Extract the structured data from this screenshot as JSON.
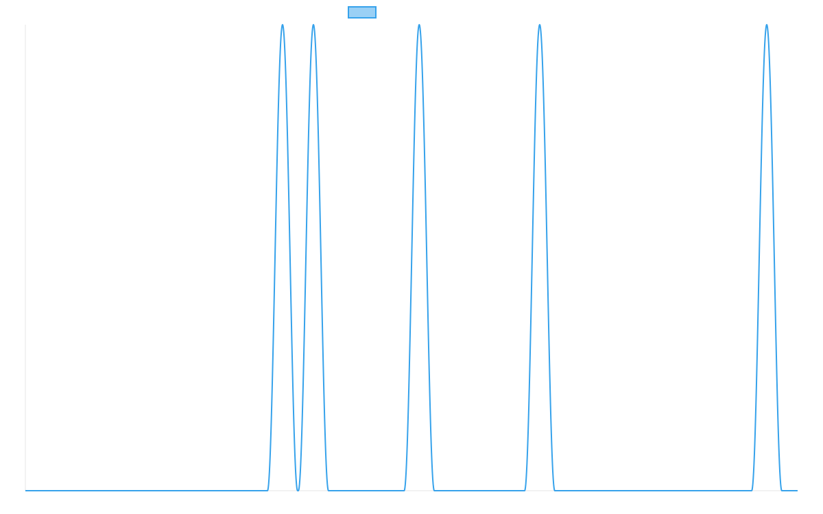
{
  "chart_data": {
    "type": "line",
    "title": "",
    "xlabel": "",
    "ylabel": "",
    "xlim": [
      0,
      100
    ],
    "ylim": [
      0,
      1
    ],
    "grid": false,
    "legend": {
      "placement": "top-center",
      "entries": [
        {
          "label": "",
          "color": "#36A2EB",
          "fill": "#9AD0F5"
        }
      ]
    },
    "series": [
      {
        "color": "#36A2EB",
        "peaks": [
          {
            "x": 33.3,
            "y": 1,
            "half_width": 1.95
          },
          {
            "x": 37.3,
            "y": 1,
            "half_width": 1.95
          },
          {
            "x": 51.0,
            "y": 1,
            "half_width": 1.95
          },
          {
            "x": 66.6,
            "y": 1,
            "half_width": 1.95
          },
          {
            "x": 96.0,
            "y": 1,
            "half_width": 1.95
          }
        ]
      }
    ]
  }
}
